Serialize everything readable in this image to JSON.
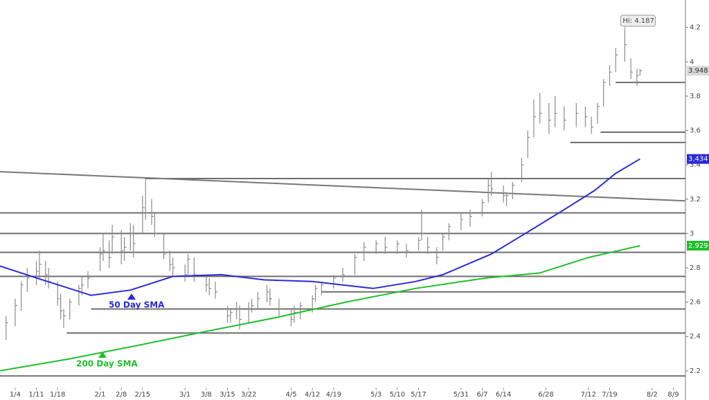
{
  "chart_data": {
    "type": "ohlc",
    "color": "#8a8a8a",
    "x": [
      1,
      4,
      6,
      8,
      11,
      12,
      14,
      15,
      18,
      19,
      20,
      22,
      25,
      26,
      28,
      32,
      33,
      35,
      36,
      39,
      40,
      42,
      43,
      46,
      47,
      49,
      50,
      53,
      55,
      56,
      60,
      61,
      63,
      67,
      68,
      70,
      74,
      75,
      77,
      78,
      81,
      82,
      84,
      87,
      88,
      91,
      95,
      96,
      98,
      102,
      103,
      105,
      109,
      112,
      116,
      119,
      123,
      126,
      130,
      133,
      137,
      138,
      140,
      143,
      145,
      147,
      151,
      154,
      158,
      160,
      161,
      165,
      166,
      168,
      171,
      173,
      175,
      177,
      180,
      182,
      185,
      189,
      192,
      194,
      196,
      198,
      200,
      202,
      205,
      207,
      209,
      210
    ],
    "high": [
      2.52,
      2.62,
      2.72,
      2.8,
      2.84,
      2.9,
      2.84,
      2.8,
      2.72,
      2.65,
      2.56,
      2.62,
      2.7,
      2.75,
      2.78,
      2.92,
      3.0,
      2.96,
      3.05,
      3.02,
      2.98,
      3.06,
      3.05,
      3.22,
      3.32,
      3.2,
      3.12,
      3.0,
      2.9,
      2.86,
      2.82,
      2.88,
      2.86,
      2.76,
      2.74,
      2.72,
      2.58,
      2.56,
      2.6,
      2.58,
      2.6,
      2.62,
      2.66,
      2.7,
      2.68,
      2.62,
      2.56,
      2.58,
      2.6,
      2.64,
      2.7,
      2.72,
      2.76,
      2.8,
      2.88,
      2.95,
      2.96,
      2.98,
      2.96,
      2.94,
      2.98,
      3.14,
      2.98,
      2.92,
      3.0,
      3.06,
      3.12,
      3.14,
      3.2,
      3.32,
      3.36,
      3.28,
      3.24,
      3.3,
      3.44,
      3.6,
      3.78,
      3.82,
      3.76,
      3.8,
      3.74,
      3.76,
      3.74,
      3.68,
      3.76,
      3.9,
      3.98,
      4.08,
      4.187,
      4.02,
      3.96,
      3.96
    ],
    "low": [
      2.38,
      2.46,
      2.55,
      2.66,
      2.7,
      2.74,
      2.7,
      2.68,
      2.58,
      2.5,
      2.45,
      2.5,
      2.58,
      2.64,
      2.68,
      2.78,
      2.84,
      2.8,
      2.88,
      2.82,
      2.84,
      2.9,
      2.86,
      3.0,
      3.08,
      3.05,
      2.98,
      2.85,
      2.78,
      2.75,
      2.72,
      2.76,
      2.72,
      2.66,
      2.64,
      2.62,
      2.48,
      2.48,
      2.5,
      2.44,
      2.48,
      2.54,
      2.56,
      2.6,
      2.58,
      2.52,
      2.46,
      2.48,
      2.5,
      2.54,
      2.6,
      2.64,
      2.68,
      2.72,
      2.76,
      2.84,
      2.88,
      2.88,
      2.88,
      2.86,
      2.9,
      2.96,
      2.88,
      2.82,
      2.9,
      2.96,
      3.02,
      3.04,
      3.1,
      3.18,
      3.22,
      3.18,
      3.16,
      3.2,
      3.3,
      3.44,
      3.56,
      3.64,
      3.58,
      3.62,
      3.6,
      3.62,
      3.62,
      3.58,
      3.64,
      3.74,
      3.86,
      3.94,
      4.0,
      3.9,
      3.86,
      3.92
    ],
    "close": [
      2.48,
      2.58,
      2.7,
      2.74,
      2.78,
      2.82,
      2.76,
      2.72,
      2.62,
      2.55,
      2.52,
      2.6,
      2.68,
      2.7,
      2.74,
      2.88,
      2.9,
      2.86,
      2.98,
      2.9,
      2.92,
      3.0,
      2.94,
      3.15,
      3.12,
      3.1,
      3.0,
      2.88,
      2.82,
      2.8,
      2.76,
      2.85,
      2.76,
      2.7,
      2.68,
      2.66,
      2.52,
      2.54,
      2.56,
      2.5,
      2.56,
      2.58,
      2.62,
      2.66,
      2.62,
      2.56,
      2.5,
      2.54,
      2.58,
      2.62,
      2.68,
      2.7,
      2.74,
      2.76,
      2.86,
      2.92,
      2.94,
      2.92,
      2.94,
      2.9,
      2.96,
      3.0,
      2.92,
      2.86,
      2.98,
      3.04,
      3.08,
      3.1,
      3.18,
      3.28,
      3.26,
      3.22,
      3.22,
      3.28,
      3.4,
      3.56,
      3.68,
      3.7,
      3.66,
      3.7,
      3.66,
      3.7,
      3.68,
      3.62,
      3.74,
      3.88,
      3.94,
      4.04,
      4.1,
      3.94,
      3.92,
      3.948
    ],
    "series": [
      {
        "name": "50 Day SMA",
        "color": "#2a2ad8",
        "x": [
          -1,
          13,
          29,
          42,
          56,
          72,
          86,
          102,
          122,
          136,
          145,
          161,
          175,
          186,
          195,
          202,
          210
        ],
        "values": [
          2.81,
          2.73,
          2.64,
          2.67,
          2.75,
          2.76,
          2.73,
          2.72,
          2.68,
          2.72,
          2.76,
          2.88,
          3.03,
          3.15,
          3.25,
          3.35,
          3.434
        ]
      },
      {
        "name": "200 Day SMA",
        "color": "#1fbf2a",
        "x": [
          -1,
          22,
          45,
          67,
          90,
          113,
          136,
          159,
          177,
          193,
          210
        ],
        "values": [
          2.2,
          2.27,
          2.35,
          2.43,
          2.51,
          2.6,
          2.68,
          2.74,
          2.77,
          2.86,
          2.929
        ]
      }
    ],
    "levels": [
      {
        "value": 3.88,
        "start": 202
      },
      {
        "value": 3.59,
        "start": 197
      },
      {
        "value": 3.53,
        "start": 187
      },
      {
        "value": 3.32,
        "start": 47
      },
      {
        "value": 3.12,
        "start": -1
      },
      {
        "value": 3.0,
        "start": -1
      },
      {
        "value": 2.89,
        "start": -1
      },
      {
        "value": 2.75,
        "start": -1
      },
      {
        "value": 2.66,
        "start": 105
      },
      {
        "value": 2.56,
        "start": 29
      },
      {
        "value": 2.42,
        "start": 21
      },
      {
        "value": 2.17,
        "start": -1
      }
    ],
    "trendline": {
      "x": [
        -1,
        225
      ],
      "values": [
        3.36,
        3.19
      ]
    },
    "hi_label": "Hi: 4.187",
    "xlim": [
      -1,
      225
    ],
    "ylim": [
      2.03,
      4.36
    ],
    "xticks": [
      {
        "value": 4,
        "label": "1/4"
      },
      {
        "value": 11,
        "label": "1/11"
      },
      {
        "value": 18,
        "label": "1/18"
      },
      {
        "value": 32,
        "label": "2/1"
      },
      {
        "value": 39,
        "label": "2/8"
      },
      {
        "value": 46,
        "label": "2/15"
      },
      {
        "value": 60,
        "label": "3/1"
      },
      {
        "value": 67,
        "label": "3/8"
      },
      {
        "value": 74,
        "label": "3/15"
      },
      {
        "value": 81,
        "label": "3/22"
      },
      {
        "value": 95,
        "label": "4/5"
      },
      {
        "value": 102,
        "label": "4/12"
      },
      {
        "value": 109,
        "label": "4/19"
      },
      {
        "value": 123,
        "label": "5/3"
      },
      {
        "value": 130,
        "label": "5/10"
      },
      {
        "value": 137,
        "label": "5/17"
      },
      {
        "value": 151,
        "label": "5/31"
      },
      {
        "value": 158,
        "label": "6/7"
      },
      {
        "value": 165,
        "label": "6/14"
      },
      {
        "value": 179,
        "label": "6/28"
      },
      {
        "value": 193,
        "label": "7/12"
      },
      {
        "value": 200,
        "label": "7/19"
      },
      {
        "value": 214,
        "label": "8/2"
      },
      {
        "value": 221,
        "label": "8/9"
      }
    ],
    "yticks": [
      4.2,
      4,
      3.8,
      3.6,
      3.4,
      3.2,
      3,
      2.8,
      2.6,
      2.4,
      2.2
    ]
  }
}
